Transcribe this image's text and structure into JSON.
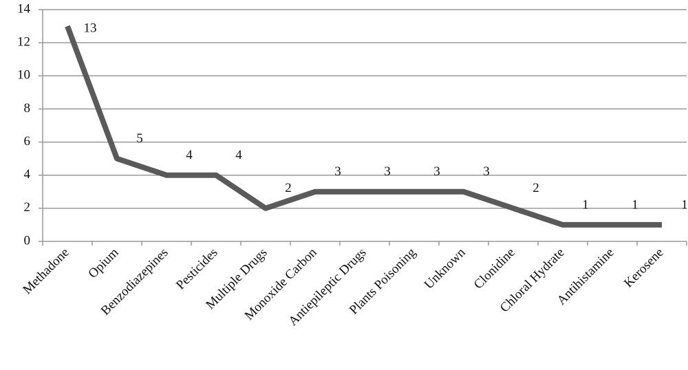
{
  "chart_data": {
    "type": "line",
    "categories": [
      "Methadone",
      "Opium",
      "Benzodiazepines",
      "Pesticides",
      "Multiple Drugs",
      "Monoxide Carbon",
      "Antiepileptic Drugs",
      "Plants Poisoning",
      "Unknown",
      "Clonidine",
      "Chloral Hydrate",
      "Antihistamine",
      "Kerosene"
    ],
    "values": [
      13,
      5,
      4,
      4,
      2,
      3,
      3,
      3,
      3,
      2,
      1,
      1,
      1
    ],
    "color": "#5a5a5a",
    "ylim": [
      0,
      14
    ],
    "yticks": [
      0,
      2,
      4,
      6,
      8,
      10,
      12,
      14
    ],
    "grid": true
  }
}
